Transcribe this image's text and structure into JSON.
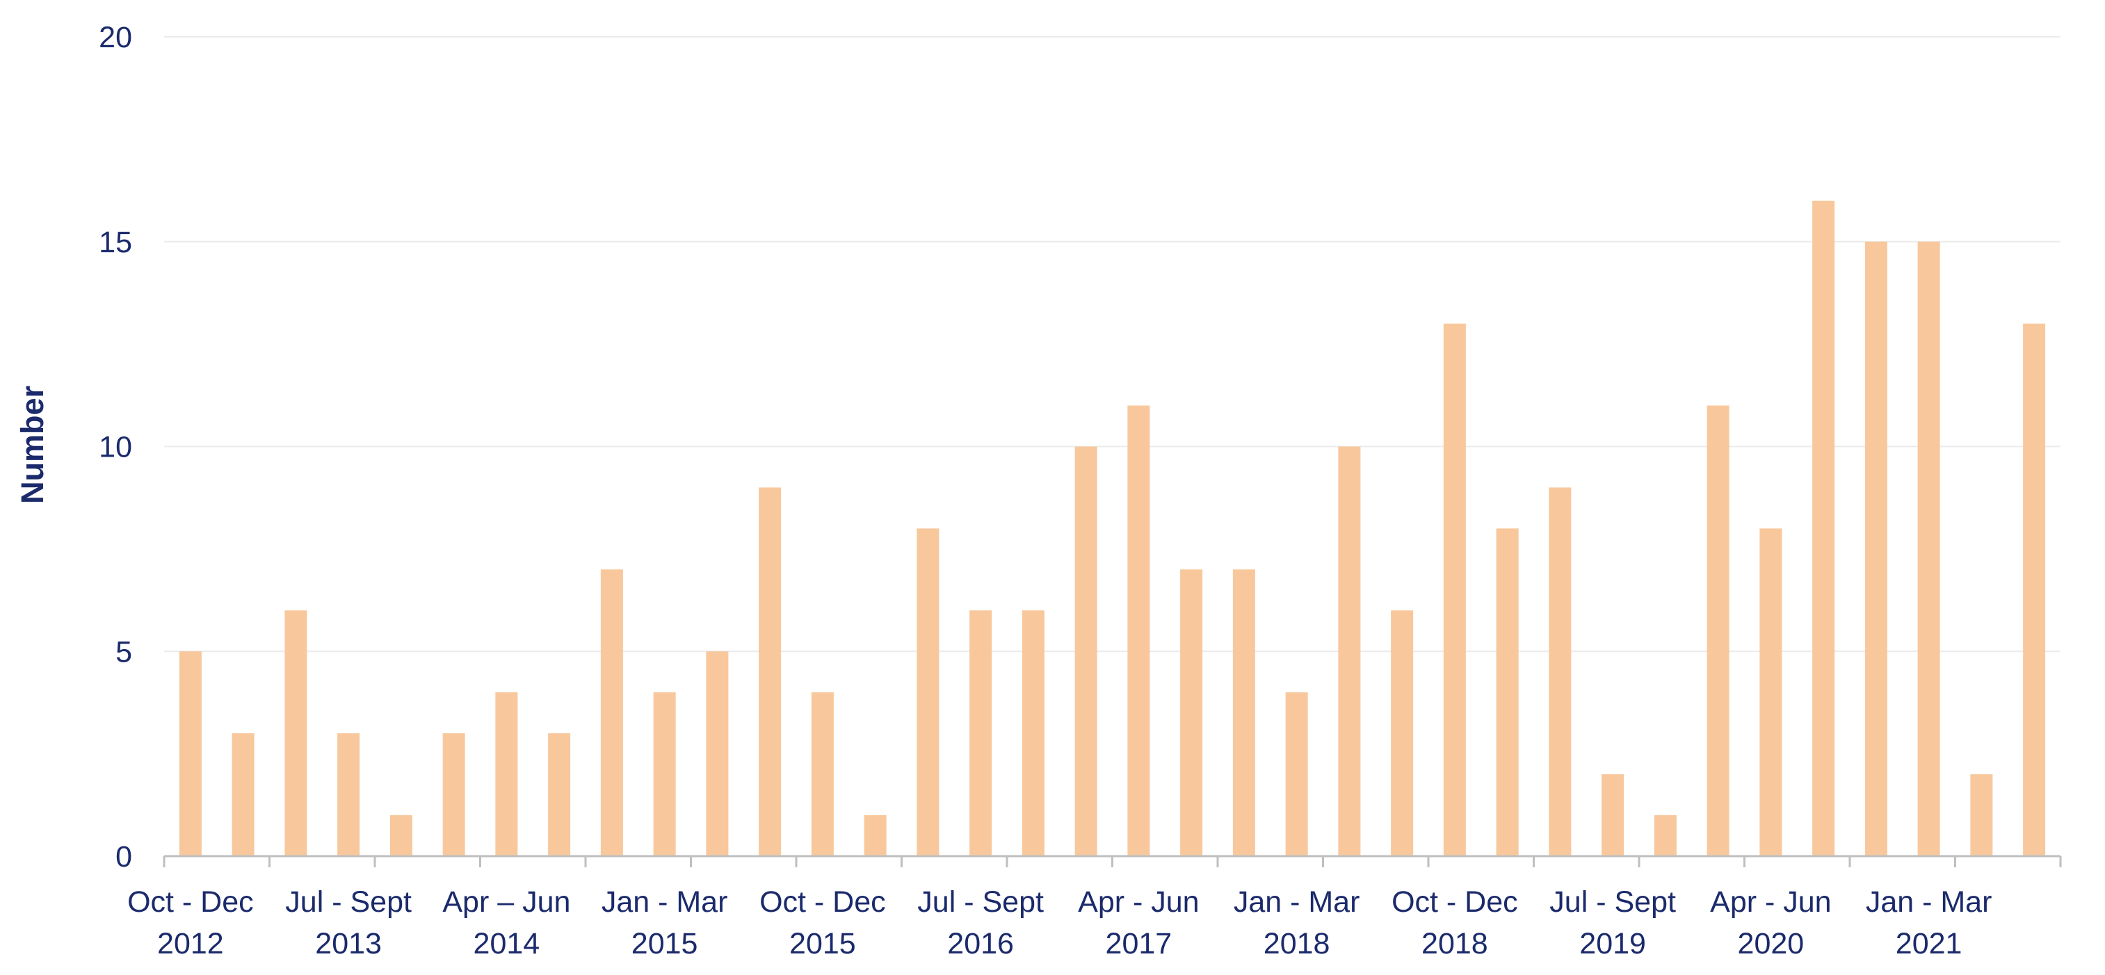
{
  "chart_data": {
    "type": "bar",
    "ylabel": "Number",
    "ylim": [
      0,
      20
    ],
    "yticks": [
      0,
      5,
      10,
      15,
      20
    ],
    "grid": true,
    "colors": {
      "bar": "#F8C89C",
      "text": "#1B2A6B",
      "grid": "#EBEBEB",
      "axis": "#BFBFBF"
    },
    "x_tick_labels": [
      {
        "line1": "Oct - Dec",
        "line2": "2012",
        "index": 0
      },
      {
        "line1": "Jul - Sept",
        "line2": "2013",
        "index": 3
      },
      {
        "line1": "Apr – Jun",
        "line2": "2014",
        "index": 6
      },
      {
        "line1": "Jan - Mar",
        "line2": "2015",
        "index": 9
      },
      {
        "line1": "Oct - Dec",
        "line2": "2015",
        "index": 12
      },
      {
        "line1": "Jul - Sept",
        "line2": "2016",
        "index": 15
      },
      {
        "line1": "Apr - Jun",
        "line2": "2017",
        "index": 18
      },
      {
        "line1": "Jan - Mar",
        "line2": "2018",
        "index": 21
      },
      {
        "line1": "Oct - Dec",
        "line2": "2018",
        "index": 24
      },
      {
        "line1": "Jul - Sept",
        "line2": "2019",
        "index": 27
      },
      {
        "line1": "Apr - Jun",
        "line2": "2020",
        "index": 30
      },
      {
        "line1": "Jan - Mar",
        "line2": "2021",
        "index": 33
      }
    ],
    "values": [
      5,
      3,
      6,
      3,
      1,
      3,
      4,
      3,
      7,
      4,
      5,
      9,
      4,
      1,
      8,
      6,
      6,
      10,
      11,
      7,
      7,
      4,
      10,
      6,
      13,
      8,
      9,
      2,
      1,
      11,
      8,
      16,
      15,
      15,
      2,
      13
    ]
  }
}
